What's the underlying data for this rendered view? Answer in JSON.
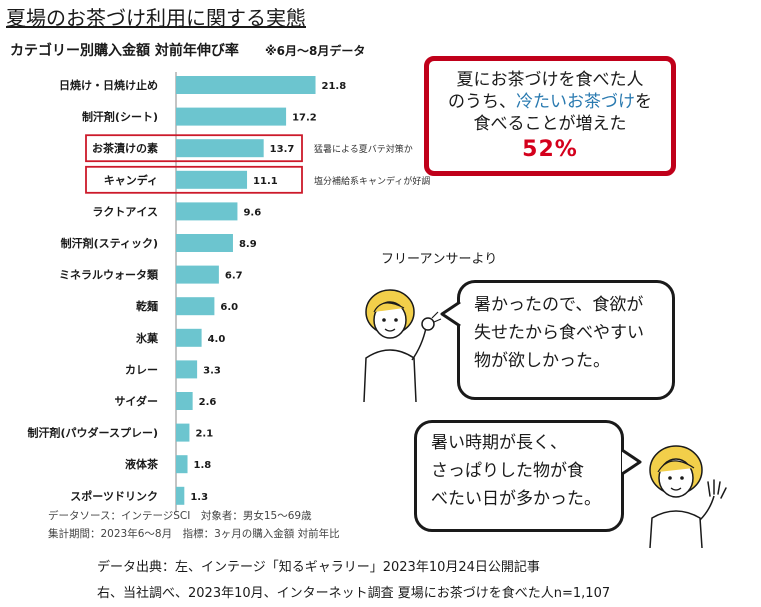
{
  "title": "夏場のお茶づけ利用に関する実態",
  "chart_data": {
    "type": "bar",
    "orientation": "horizontal",
    "title": "カテゴリー別購入金額 対前年伸び率",
    "note": "※6月～8月データ",
    "categories": [
      "日焼け・日焼け止め",
      "制汗剤(シート)",
      "お茶漬けの素",
      "キャンディ",
      "ラクトアイス",
      "制汗剤(スティック)",
      "ミネラルウォータ類",
      "乾麺",
      "氷菓",
      "カレー",
      "サイダー",
      "制汗剤(パウダースプレー)",
      "液体茶",
      "スポーツドリンク"
    ],
    "values": [
      21.8,
      17.2,
      13.7,
      11.1,
      9.6,
      8.9,
      6.7,
      6.0,
      4.0,
      3.3,
      2.6,
      2.1,
      1.8,
      1.3
    ],
    "value_labels": [
      "21.8",
      "17.2",
      "13.7",
      "11.1",
      "9.6",
      "8.9",
      "6.7",
      "6.0",
      "4.0",
      "3.3",
      "2.6",
      "2.1",
      "1.8",
      "1.3"
    ],
    "xlim": [
      0,
      25
    ],
    "bar_color": "#6cc5cf",
    "highlight_color": "#cc1a2a",
    "highlighted_categories": [
      "お茶漬けの素",
      "キャンディ"
    ],
    "annotations": [
      {
        "category": "お茶漬けの素",
        "text": "猛暑による夏バテ対策か"
      },
      {
        "category": "キャンディ",
        "text": "塩分補給系キャンディが好調"
      }
    ],
    "grid": false,
    "legend": "none"
  },
  "chart_source": {
    "line1": "データソース：インテージSCI　対象者：男女15～69歳",
    "line2": "集計期間：2023年6～8月　指標：3ヶ月の購入金額 対前年比"
  },
  "survey_box": {
    "line1": "夏にお茶づけを食べた人",
    "line2_prefix": "のうち、",
    "line2_highlight": "冷たいお茶づけ",
    "line2_suffix": "を",
    "line3": "食べることが増えた",
    "percent": "52%",
    "border_color": "#c0001a",
    "highlight_color": "#2a7ab0",
    "percent_color": "#d4001c"
  },
  "free_answer_label": "フリーアンサーより",
  "quotes": [
    {
      "lines": [
        "暑かったので、食欲が",
        "失せたから食べやすい",
        "物が欲しかった。"
      ]
    },
    {
      "lines": [
        "暑い時期が長く、",
        "さっぱりした物が食",
        "べたい日が多かった。"
      ]
    }
  ],
  "citations": {
    "line1": "データ出典：左、インテージ「知るギャラリー」2023年10月24日公開記事",
    "line2": "右、当社調べ、2023年10月、インターネット調査 夏場にお茶づけを食べた人n=1,107"
  }
}
